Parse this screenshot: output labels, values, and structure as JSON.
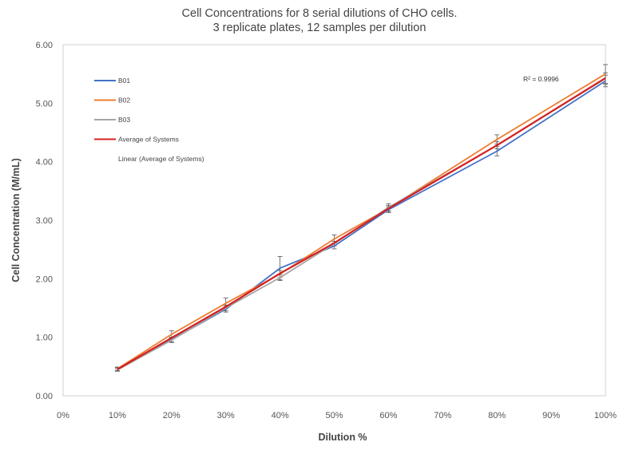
{
  "chart_data": {
    "type": "line",
    "title_line1": "Cell Concentrations for 8 serial dilutions of CHO cells.",
    "title_line2": "3 replicate plates, 12 samples per dilution",
    "xlabel": "Dilution %",
    "ylabel": "Cell Concentration (M/mL)",
    "xlim": [
      0,
      100
    ],
    "ylim": [
      0,
      6
    ],
    "x_ticks": [
      0,
      10,
      20,
      30,
      40,
      50,
      60,
      70,
      80,
      90,
      100
    ],
    "x_tick_labels": [
      "0%",
      "10%",
      "20%",
      "30%",
      "40%",
      "50%",
      "60%",
      "70%",
      "80%",
      "90%",
      "100%"
    ],
    "y_ticks": [
      0,
      1,
      2,
      3,
      4,
      5,
      6
    ],
    "y_tick_labels": [
      "0.00",
      "1.00",
      "2.00",
      "3.00",
      "4.00",
      "5.00",
      "6.00"
    ],
    "x": [
      10,
      20,
      30,
      40,
      50,
      60,
      80,
      100
    ],
    "series": [
      {
        "name": "B01",
        "color": "#4472C4",
        "values": [
          0.45,
          0.96,
          1.48,
          2.18,
          2.56,
          3.18,
          4.18,
          5.38
        ]
      },
      {
        "name": "B02",
        "color": "#ED7D31",
        "values": [
          0.46,
          1.05,
          1.58,
          2.08,
          2.68,
          3.2,
          4.38,
          5.5
        ]
      },
      {
        "name": "B03",
        "color": "#A5A5A5",
        "values": [
          0.44,
          0.95,
          1.5,
          2.02,
          2.6,
          3.22,
          4.28,
          5.42
        ]
      },
      {
        "name": "Average of Systems",
        "color": "#D42020",
        "values": [
          0.45,
          0.99,
          1.52,
          2.09,
          2.61,
          3.2,
          4.28,
          5.43
        ]
      }
    ],
    "error_bars": {
      "B01": [
        0.03,
        0.04,
        0.05,
        0.2,
        0.05,
        0.05,
        0.08,
        0.1
      ],
      "B02": [
        0.03,
        0.06,
        0.09,
        0.06,
        0.07,
        0.05,
        0.08,
        0.16
      ],
      "B03": [
        0.02,
        0.04,
        0.05,
        0.05,
        0.04,
        0.06,
        0.06,
        0.1
      ]
    },
    "trendline": {
      "name": "Linear (Average of Systems)",
      "r2_label": "R² = 0.9996",
      "slope": 0.0552,
      "intercept": -0.08
    },
    "legend": {
      "placement": "top-left inside plot",
      "entries": [
        "B01",
        "B02",
        "B03",
        "Average of Systems",
        "Linear (Average of Systems)"
      ]
    },
    "grid": false
  }
}
